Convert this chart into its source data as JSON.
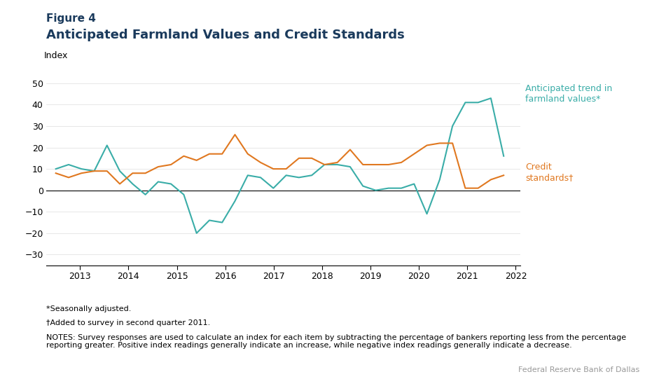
{
  "title_figure": "Figure 4",
  "title_main": "Anticipated Farmland Values and Credit Standards",
  "ylabel": "Index",
  "title_color": "#1a3a5c",
  "teal_color": "#3aada8",
  "orange_color": "#e07820",
  "ylim": [
    -35,
    57
  ],
  "yticks": [
    -30,
    -20,
    -10,
    0,
    10,
    20,
    30,
    40,
    50
  ],
  "footnote1": "*Seasonally adjusted.",
  "footnote2": "†Added to survey in second quarter 2011.",
  "footnote3": "NOTES: Survey responses are used to calculate an index for each item by subtracting the percentage of bankers reporting less from the percentage reporting greater. Positive index readings generally indicate an increase, while negative index readings generally indicate a decrease.",
  "source": "Federal Reserve Bank of Dallas",
  "label_farmland": "Anticipated trend in\nfarmland values*",
  "label_credit": "Credit\nstandards†",
  "farmland_values": [
    10,
    12,
    10,
    9,
    21,
    9,
    3,
    -2,
    4,
    3,
    -2,
    -20,
    -14,
    -15,
    -5,
    7,
    6,
    1,
    7,
    6,
    7,
    12,
    12,
    11,
    2,
    0,
    1,
    1,
    3,
    -11,
    5,
    30,
    41,
    41,
    43,
    16
  ],
  "credit_values": [
    8,
    6,
    8,
    9,
    9,
    3,
    8,
    8,
    11,
    12,
    16,
    14,
    17,
    17,
    26,
    17,
    13,
    10,
    10,
    15,
    15,
    12,
    13,
    19,
    12,
    12,
    12,
    13,
    17,
    21,
    22,
    22,
    1,
    1,
    5,
    7
  ],
  "x_start": 2012.5,
  "x_end": 2021.75,
  "xlim_left": 2012.3,
  "xlim_right": 2022.1
}
